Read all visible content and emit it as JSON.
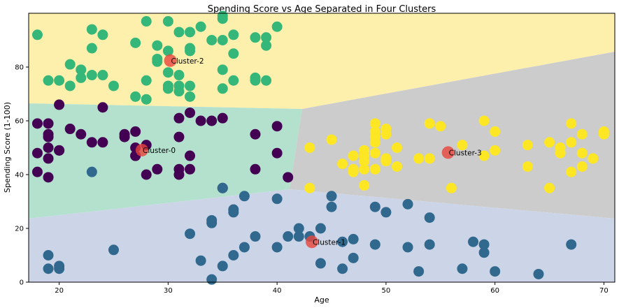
{
  "chart_data": {
    "type": "scatter",
    "title": "Spending Score vs Age Separated in Four Clusters",
    "xlabel": "Age",
    "ylabel": "Spending Score (1-100)",
    "xlim": [
      17.2,
      71.0
    ],
    "ylim": [
      0,
      100
    ],
    "x_ticks": [
      20,
      30,
      40,
      50,
      60,
      70
    ],
    "y_ticks": [
      0,
      20,
      40,
      60,
      80
    ],
    "grid": false,
    "legend": "none",
    "regions": [
      {
        "cluster": "Cluster-0",
        "color": "#b3e1cd"
      },
      {
        "cluster": "Cluster-1",
        "color": "#cbd5e7"
      },
      {
        "cluster": "Cluster-2",
        "color": "#fdf0ad"
      },
      {
        "cluster": "Cluster-3",
        "color": "#cccccc"
      }
    ],
    "series": [
      {
        "cluster": "Cluster-0",
        "color": "#440154",
        "x": [
          18,
          19,
          19,
          19,
          20,
          18,
          20,
          19,
          19,
          21,
          22,
          23,
          24,
          24,
          26,
          26,
          27,
          27,
          27,
          28,
          28,
          29,
          31,
          31,
          31,
          32,
          32,
          33,
          34,
          35,
          35,
          38,
          38,
          40,
          40,
          41,
          20,
          18,
          19,
          31,
          32,
          27
        ],
        "y": [
          59,
          59,
          55,
          54,
          66,
          48,
          49,
          50,
          46,
          57,
          55,
          52,
          52,
          65,
          55,
          54,
          56,
          50,
          47,
          51,
          40,
          42,
          40,
          42,
          61,
          47,
          42,
          60,
          60,
          61,
          35,
          55,
          42,
          58,
          48,
          39,
          49,
          41,
          39,
          54,
          63,
          47
        ]
      },
      {
        "cluster": "Cluster-1",
        "color": "#31688e",
        "x": [
          19,
          19,
          20,
          20,
          25,
          23,
          32,
          33,
          34,
          34,
          35,
          35,
          36,
          36,
          37,
          37,
          38,
          40,
          40,
          41,
          42,
          42,
          43,
          44,
          44,
          45,
          45,
          46,
          46,
          47,
          47,
          49,
          49,
          50,
          52,
          52,
          53,
          54,
          54,
          57,
          58,
          59,
          59,
          60,
          64,
          67,
          34,
          36
        ],
        "y": [
          10,
          5,
          6,
          5,
          12,
          41,
          18,
          8,
          23,
          22,
          35,
          6,
          26,
          27,
          13,
          32,
          17,
          31,
          13,
          17,
          20,
          17,
          17,
          20,
          7,
          32,
          28,
          15,
          5,
          16,
          9,
          28,
          14,
          26,
          29,
          13,
          4,
          24,
          14,
          5,
          15,
          14,
          11,
          4,
          3,
          14,
          1,
          10
        ]
      },
      {
        "cluster": "Cluster-2",
        "color": "#35b779",
        "x": [
          18,
          19,
          20,
          21,
          21,
          22,
          22,
          23,
          23,
          23,
          24,
          24,
          25,
          27,
          27,
          28,
          28,
          29,
          29,
          29,
          30,
          30,
          30,
          30,
          30,
          31,
          31,
          31,
          31,
          32,
          32,
          32,
          32,
          32,
          33,
          34,
          35,
          35,
          35,
          35,
          35,
          36,
          36,
          36,
          38,
          38,
          38,
          39,
          39,
          39,
          40,
          28
        ],
        "y": [
          92,
          75,
          75,
          73,
          81,
          79,
          76,
          94,
          87,
          77,
          77,
          92,
          73,
          89,
          69,
          97,
          75,
          88,
          83,
          82,
          97,
          86,
          78,
          73,
          72,
          93,
          77,
          73,
          71,
          93,
          87,
          86,
          73,
          69,
          95,
          90,
          99,
          90,
          79,
          72,
          98,
          92,
          85,
          75,
          91,
          76,
          75,
          91,
          88,
          75,
          95,
          68
        ]
      },
      {
        "cluster": "Cluster-3",
        "color": "#fde725",
        "x": [
          43,
          43,
          45,
          46,
          47,
          47,
          47,
          48,
          48,
          48,
          48,
          48,
          49,
          49,
          49,
          49,
          49,
          49,
          50,
          50,
          50,
          50,
          51,
          51,
          53,
          54,
          54,
          55,
          56,
          57,
          59,
          59,
          60,
          60,
          63,
          63,
          65,
          65,
          66,
          66,
          67,
          67,
          67,
          68,
          68,
          68,
          69,
          70,
          70
        ],
        "y": [
          50,
          35,
          53,
          44,
          47,
          42,
          41,
          42,
          49,
          47,
          45,
          36,
          59,
          56,
          52,
          48,
          42,
          54,
          57,
          55,
          46,
          45,
          50,
          43,
          46,
          59,
          46,
          58,
          35,
          51,
          60,
          47,
          56,
          49,
          51,
          43,
          52,
          35,
          48,
          50,
          59,
          52,
          41,
          55,
          48,
          43,
          46,
          55,
          56
        ]
      }
    ],
    "centroids": [
      {
        "label": "Cluster-0",
        "x": 27.6,
        "y": 49.1
      },
      {
        "label": "Cluster-1",
        "x": 43.2,
        "y": 15.0
      },
      {
        "label": "Cluster-2",
        "x": 30.2,
        "y": 82.4
      },
      {
        "label": "Cluster-3",
        "x": 55.7,
        "y": 48.2
      }
    ],
    "centroid_color": "#e8453c"
  }
}
